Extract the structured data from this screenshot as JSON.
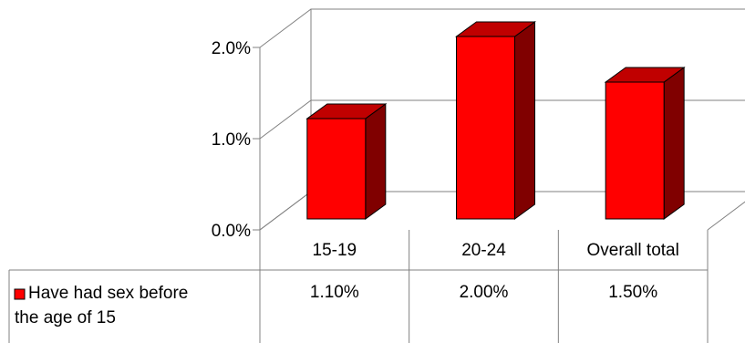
{
  "chart_data": {
    "type": "bar",
    "categories": [
      "15-19",
      "20-24",
      "Overall total"
    ],
    "series": [
      {
        "name": "Have had sex before the age of 15",
        "values": [
          1.1,
          2.0,
          1.5
        ],
        "value_labels": [
          "1.10%",
          "2.00%",
          "1.50%"
        ],
        "color": "#ff0000"
      }
    ],
    "yticks": [
      {
        "value": 0.0,
        "label": "0.0%"
      },
      {
        "value": 1.0,
        "label": "1.0%"
      },
      {
        "value": 2.0,
        "label": "2.0%"
      }
    ],
    "ylim": [
      0,
      2.0
    ],
    "grid": true,
    "legend_placement": "bottom-left (in data table)",
    "data_table": true,
    "colors": {
      "bar_front": "#ff0000",
      "bar_top": "#c00000",
      "bar_side": "#800000",
      "axis": "#808080"
    }
  }
}
